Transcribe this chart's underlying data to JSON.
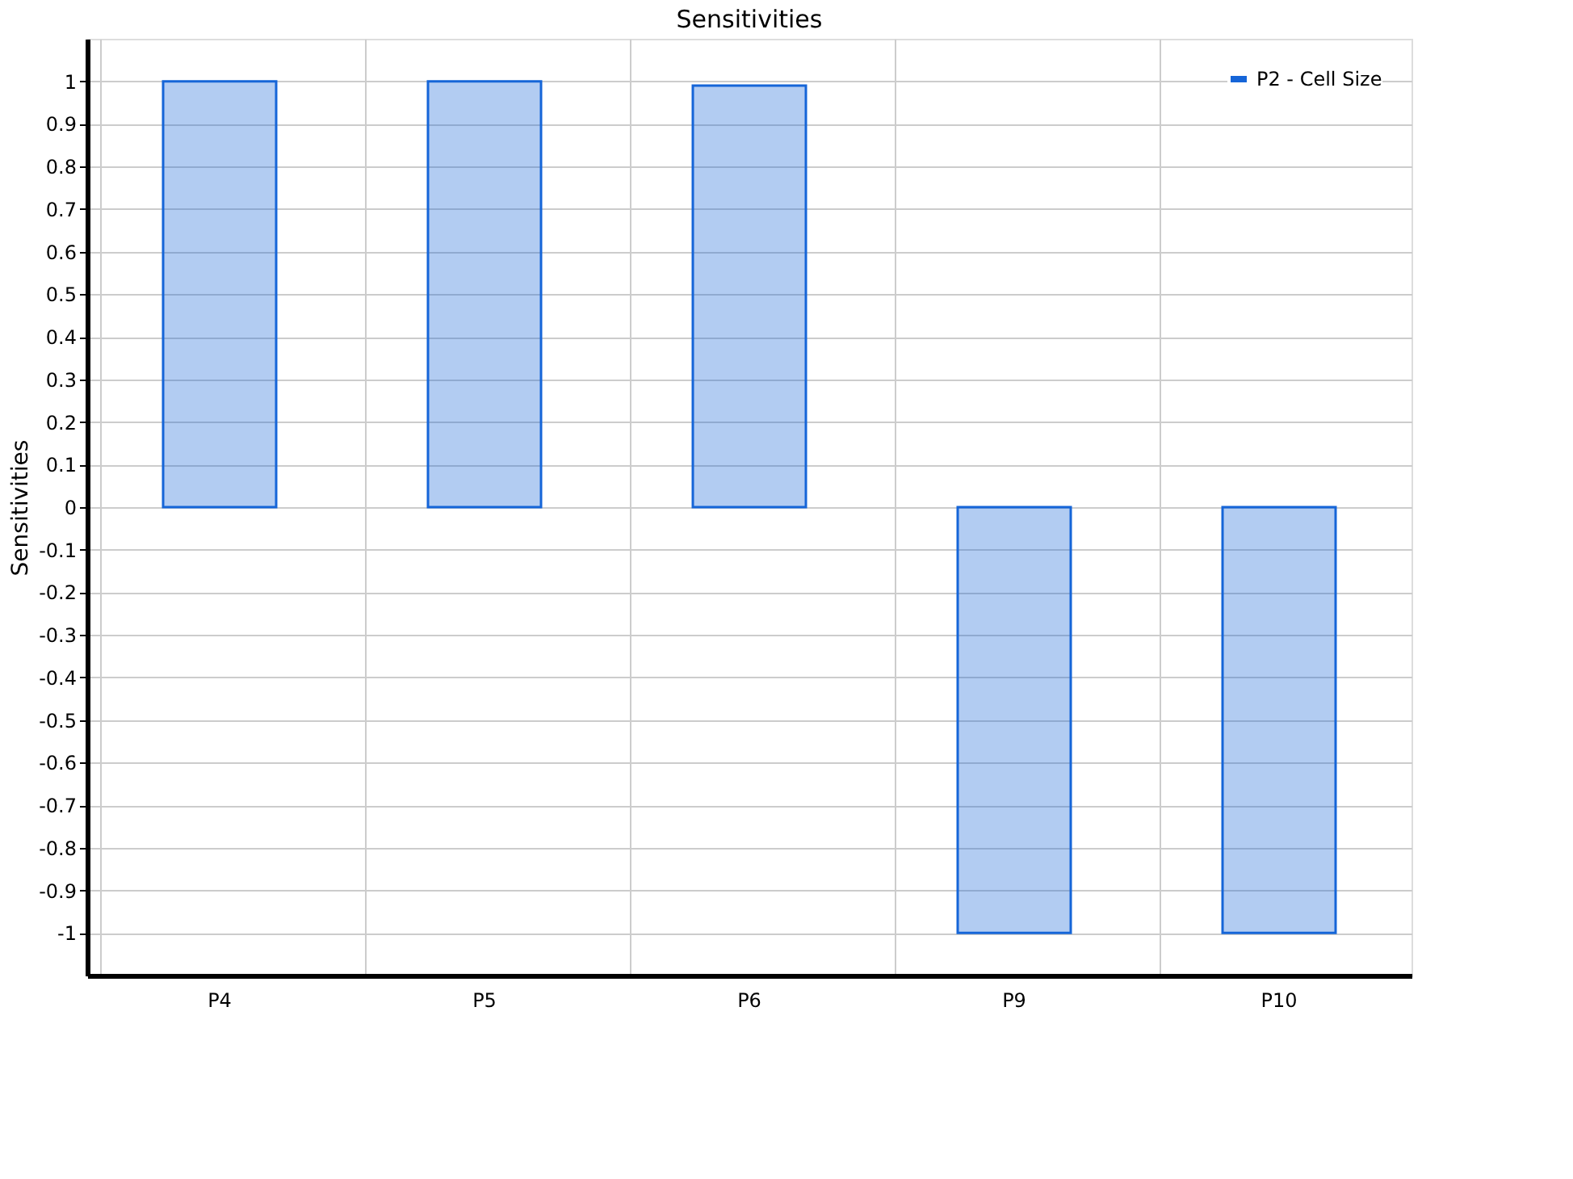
{
  "chart_data": {
    "type": "bar",
    "title": "Sensitivities",
    "ylabel": "Sensitivities",
    "categories": [
      "P4",
      "P5",
      "P6",
      "P9",
      "P10"
    ],
    "series": [
      {
        "name": "P2 - Cell Size",
        "color": "#1565d8",
        "values": [
          1.0,
          1.0,
          0.99,
          -1.0,
          -1.0
        ]
      }
    ],
    "ylim": [
      -1.1,
      1.1
    ],
    "yticks": [
      -1,
      -0.9,
      -0.8,
      -0.7,
      -0.6,
      -0.5,
      -0.4,
      -0.3,
      -0.2,
      -0.1,
      0,
      0.1,
      0.2,
      0.3,
      0.4,
      0.5,
      0.6,
      0.7,
      0.8,
      0.9,
      1
    ],
    "grid": true,
    "legend": "top right"
  }
}
